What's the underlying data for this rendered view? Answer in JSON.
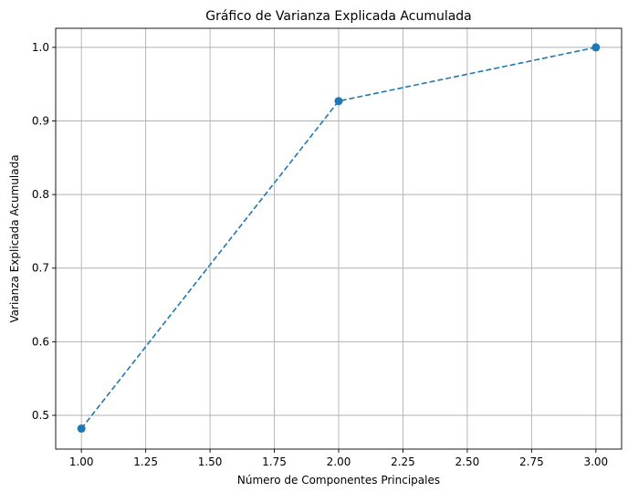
{
  "chart_data": {
    "type": "line",
    "title": "Gráfico de Varianza Explicada Acumulada",
    "xlabel": "Número de Componentes Principales",
    "ylabel": "Varianza Explicada Acumulada",
    "x": [
      1,
      2,
      3
    ],
    "series": [
      {
        "values": [
          0.482,
          0.927,
          1.0
        ],
        "color": "#1f77b4",
        "line_style": "dashed",
        "marker": "circle"
      }
    ],
    "xlim": [
      0.9,
      3.1
    ],
    "ylim": [
      0.4541,
      1.0259
    ],
    "xticks": [
      "1.00",
      "1.25",
      "1.50",
      "1.75",
      "2.00",
      "2.25",
      "2.50",
      "2.75",
      "3.00"
    ],
    "yticks": [
      "0.5",
      "0.6",
      "0.7",
      "0.8",
      "0.9",
      "1.0"
    ],
    "grid": true,
    "colors": {
      "grid": "#b0b0b0",
      "axes": "#000000"
    }
  }
}
